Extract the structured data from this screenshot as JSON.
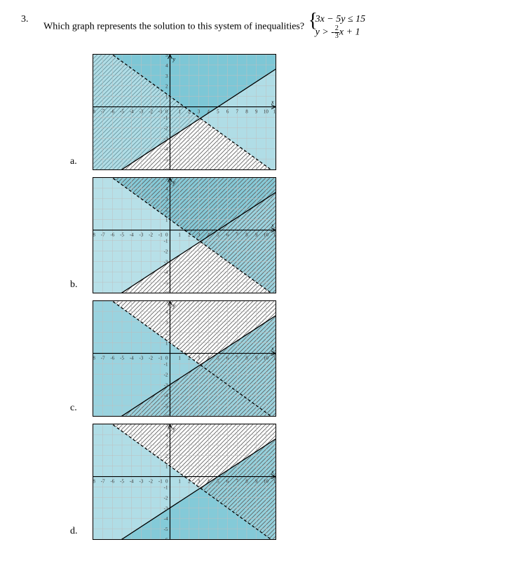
{
  "question": {
    "number": "3.",
    "text": "Which graph represents the solution to this system of inequalities?",
    "system_line1": "3x − 5y ≤ 15",
    "system_line2_prefix": "y > -",
    "system_line2_frac_top": "2",
    "system_line2_frac_bot": "3",
    "system_line2_suffix": "x + 1"
  },
  "colors": {
    "shade": "#6fc1d1",
    "hatch": "#5c5c5c",
    "grid": "#bfbfbf",
    "axis": "#000000",
    "bg": "#ffffff"
  },
  "axis": {
    "x_min": -8,
    "x_max": 11,
    "y_min": -6,
    "y_max": 5,
    "x_ticks": [
      -8,
      -7,
      -6,
      -5,
      -4,
      -3,
      -2,
      -1,
      0,
      1,
      2,
      3,
      4,
      5,
      6,
      7,
      8,
      9,
      10,
      11
    ],
    "y_ticks": [
      -6,
      -5,
      -4,
      -3,
      -2,
      -1,
      1,
      2,
      3,
      4,
      5
    ],
    "x_label": "x",
    "y_label": "y"
  },
  "graphs": [
    {
      "id": "a",
      "label": "a.",
      "line1": {
        "slope": 0.6,
        "intercept": -3,
        "dashed": false
      },
      "line2": {
        "slope": -0.6667,
        "intercept": 1,
        "dashed": true
      },
      "solid_region": "above_both",
      "hatch_region": "below_line1_only"
    },
    {
      "id": "b",
      "label": "b.",
      "line1": {
        "slope": 0.6,
        "intercept": -3,
        "dashed": false
      },
      "line2": {
        "slope": -0.6667,
        "intercept": 1,
        "dashed": true
      },
      "solid_region": "above_line1_and_above_line2_union",
      "hatch_region": "below_line1_and_above_line2_intersection_alt"
    },
    {
      "id": "c",
      "label": "c.",
      "line1": {
        "slope": 0.6,
        "intercept": -3,
        "dashed": false
      },
      "line2": {
        "slope": -0.6667,
        "intercept": 1,
        "dashed": true
      },
      "solid_region": "below_line1_and_below_line2",
      "hatch_region": "above_line2_only"
    },
    {
      "id": "d",
      "label": "d.",
      "line1": {
        "slope": 0.6,
        "intercept": -3,
        "dashed": false
      },
      "line2": {
        "slope": -0.6667,
        "intercept": 1,
        "dashed": true
      },
      "solid_region": "below_line1",
      "hatch_region": "above_line2_and_below_line1"
    }
  ],
  "option_labels": [
    "a.",
    "b.",
    "c.",
    "d."
  ]
}
